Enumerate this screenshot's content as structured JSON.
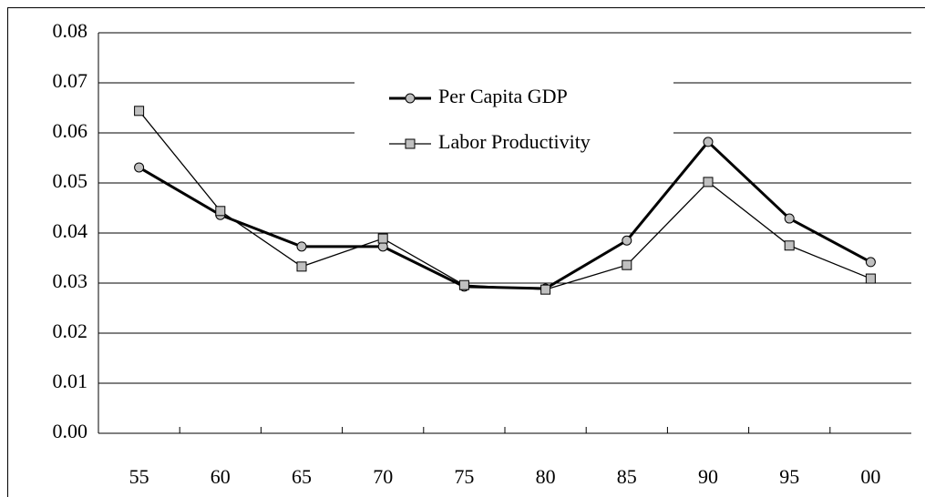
{
  "chart_data": {
    "type": "line",
    "categories": [
      "55",
      "60",
      "65",
      "70",
      "75",
      "80",
      "85",
      "90",
      "95",
      "00"
    ],
    "series": [
      {
        "name": "Per Capita GDP",
        "color": "#000000",
        "marker": "circle",
        "marker_color": "#c0c0c0",
        "line_width": 3,
        "values": [
          0.0531,
          0.0436,
          0.0373,
          0.0373,
          0.0293,
          0.0289,
          0.0385,
          0.0582,
          0.0429,
          0.0342
        ]
      },
      {
        "name": "Labor Productivity",
        "color": "#000000",
        "marker": "square",
        "marker_color": "#c0c0c0",
        "line_width": 1.3,
        "values": [
          0.0644,
          0.0444,
          0.0333,
          0.0389,
          0.0296,
          0.0287,
          0.0336,
          0.0502,
          0.0375,
          0.0309
        ]
      }
    ],
    "ylim": [
      0,
      0.08
    ],
    "yticks": [
      {
        "value": 0,
        "label": "0.00"
      },
      0.01,
      0.02,
      0.03,
      0.04,
      0.05,
      0.06,
      0.07,
      0.08
    ],
    "grid": true,
    "legend": "top-center"
  }
}
